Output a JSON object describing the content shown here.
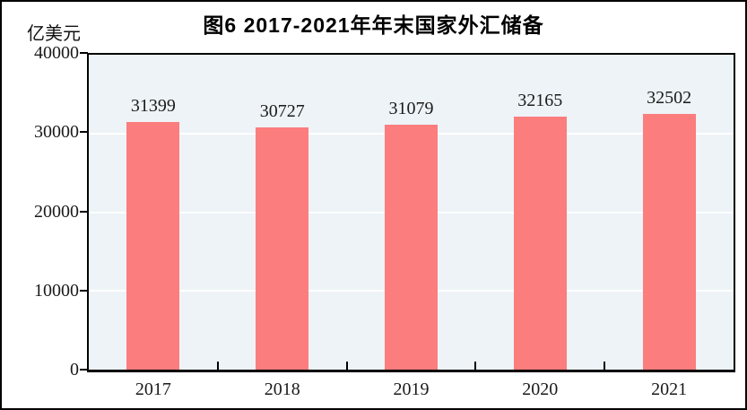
{
  "figure": {
    "title": "图6  2017-2021年年末国家外汇储备",
    "unit_label": "亿美元"
  },
  "chart_data": {
    "type": "bar",
    "title": "图6  2017-2021年年末国家外汇储备",
    "categories": [
      "2017",
      "2018",
      "2019",
      "2020",
      "2021"
    ],
    "values": [
      31399,
      30727,
      31079,
      32165,
      32502
    ],
    "data_labels": [
      "31399",
      "30727",
      "31079",
      "32165",
      "32502"
    ],
    "xlabel": "",
    "ylabel": "亿美元",
    "ylim": [
      0,
      40000
    ],
    "yticks": [
      0,
      10000,
      20000,
      30000,
      40000
    ],
    "grid": true,
    "legend": "none",
    "colors": {
      "bar_fill": "#FC7D7D",
      "plot_background": "#EDF3F7",
      "gridline": "#FFFFFF",
      "axis": "#000000",
      "text": "#1A1A1A",
      "page_background": "#FFFFFF"
    }
  }
}
